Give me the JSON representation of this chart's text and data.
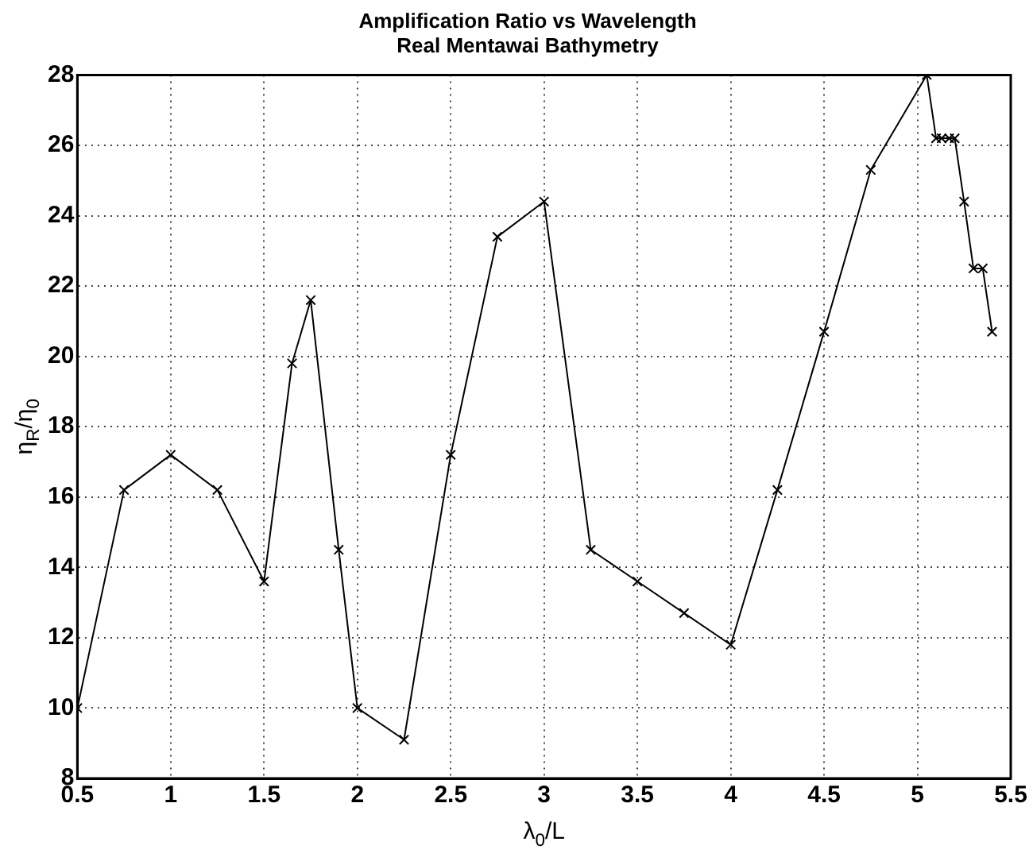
{
  "chart_data": {
    "type": "line",
    "title": "Amplification Ratio vs Wavelength",
    "subtitle": "Real Mentawai Bathymetry",
    "xlabel": "λ$_{0}$/L",
    "ylabel": "η$_{R}$/η$_{0}$",
    "x": [
      0.5,
      0.75,
      1,
      1.25,
      1.5,
      1.65,
      1.75,
      1.9,
      2,
      2.25,
      2.5,
      2.75,
      3,
      3.25,
      3.5,
      3.75,
      4,
      4.25,
      4.5,
      4.75,
      5.05,
      5.1,
      5.13,
      5.17,
      5.2,
      5.25,
      5.3,
      5.35,
      5.4
    ],
    "series": [
      {
        "color": "#000000",
        "values": [
          10,
          16.2,
          17.2,
          16.2,
          13.6,
          19.8,
          21.6,
          14.5,
          10,
          9.1,
          17.2,
          23.4,
          24.4,
          14.5,
          13.6,
          12.7,
          11.8,
          16.2,
          20.7,
          25.3,
          28,
          26.2,
          26.2,
          26.2,
          26.2,
          24.4,
          22.5,
          22.5,
          20.7
        ]
      }
    ],
    "xlim": [
      0.5,
      5.5
    ],
    "xticks": [
      0.5,
      1,
      1.5,
      2,
      2.5,
      3,
      3.5,
      4,
      4.5,
      5,
      5.5
    ],
    "ylim": [
      8,
      28
    ],
    "yticks": [
      8,
      10,
      12,
      14,
      16,
      18,
      20,
      22,
      24,
      26,
      28
    ],
    "grid": true,
    "legend": false,
    "marker": "cross",
    "line_style": "solid"
  }
}
